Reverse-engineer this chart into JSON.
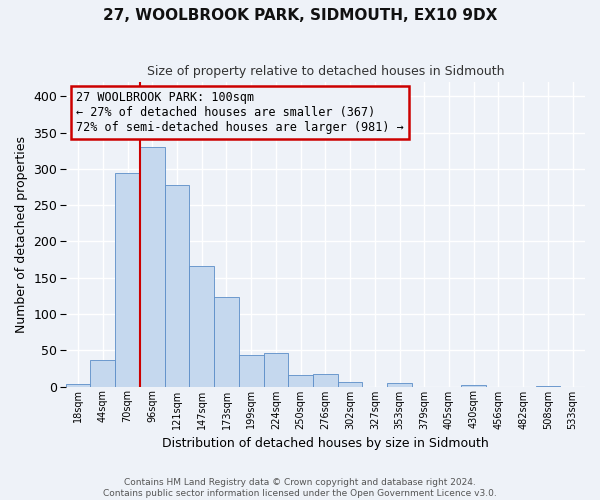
{
  "title": "27, WOOLBROOK PARK, SIDMOUTH, EX10 9DX",
  "subtitle": "Size of property relative to detached houses in Sidmouth",
  "xlabel": "Distribution of detached houses by size in Sidmouth",
  "ylabel": "Number of detached properties",
  "bin_labels": [
    "18sqm",
    "44sqm",
    "70sqm",
    "96sqm",
    "121sqm",
    "147sqm",
    "173sqm",
    "199sqm",
    "224sqm",
    "250sqm",
    "276sqm",
    "302sqm",
    "327sqm",
    "353sqm",
    "379sqm",
    "405sqm",
    "430sqm",
    "456sqm",
    "482sqm",
    "508sqm",
    "533sqm"
  ],
  "bar_heights": [
    3,
    37,
    295,
    330,
    278,
    166,
    123,
    43,
    46,
    16,
    17,
    6,
    0,
    5,
    0,
    0,
    2,
    0,
    0,
    1,
    0
  ],
  "bar_color": "#c5d8ee",
  "bar_edge_color": "#5b8dc8",
  "vline_color": "#cc0000",
  "vline_bin_index": 3,
  "annotation_text": "27 WOOLBROOK PARK: 100sqm\n← 27% of detached houses are smaller (367)\n72% of semi-detached houses are larger (981) →",
  "annotation_box_edgecolor": "#cc0000",
  "ylim": [
    0,
    420
  ],
  "yticks": [
    0,
    50,
    100,
    150,
    200,
    250,
    300,
    350,
    400
  ],
  "footer_line1": "Contains HM Land Registry data © Crown copyright and database right 2024.",
  "footer_line2": "Contains public sector information licensed under the Open Government Licence v3.0.",
  "background_color": "#eef2f8",
  "grid_color": "#ffffff"
}
